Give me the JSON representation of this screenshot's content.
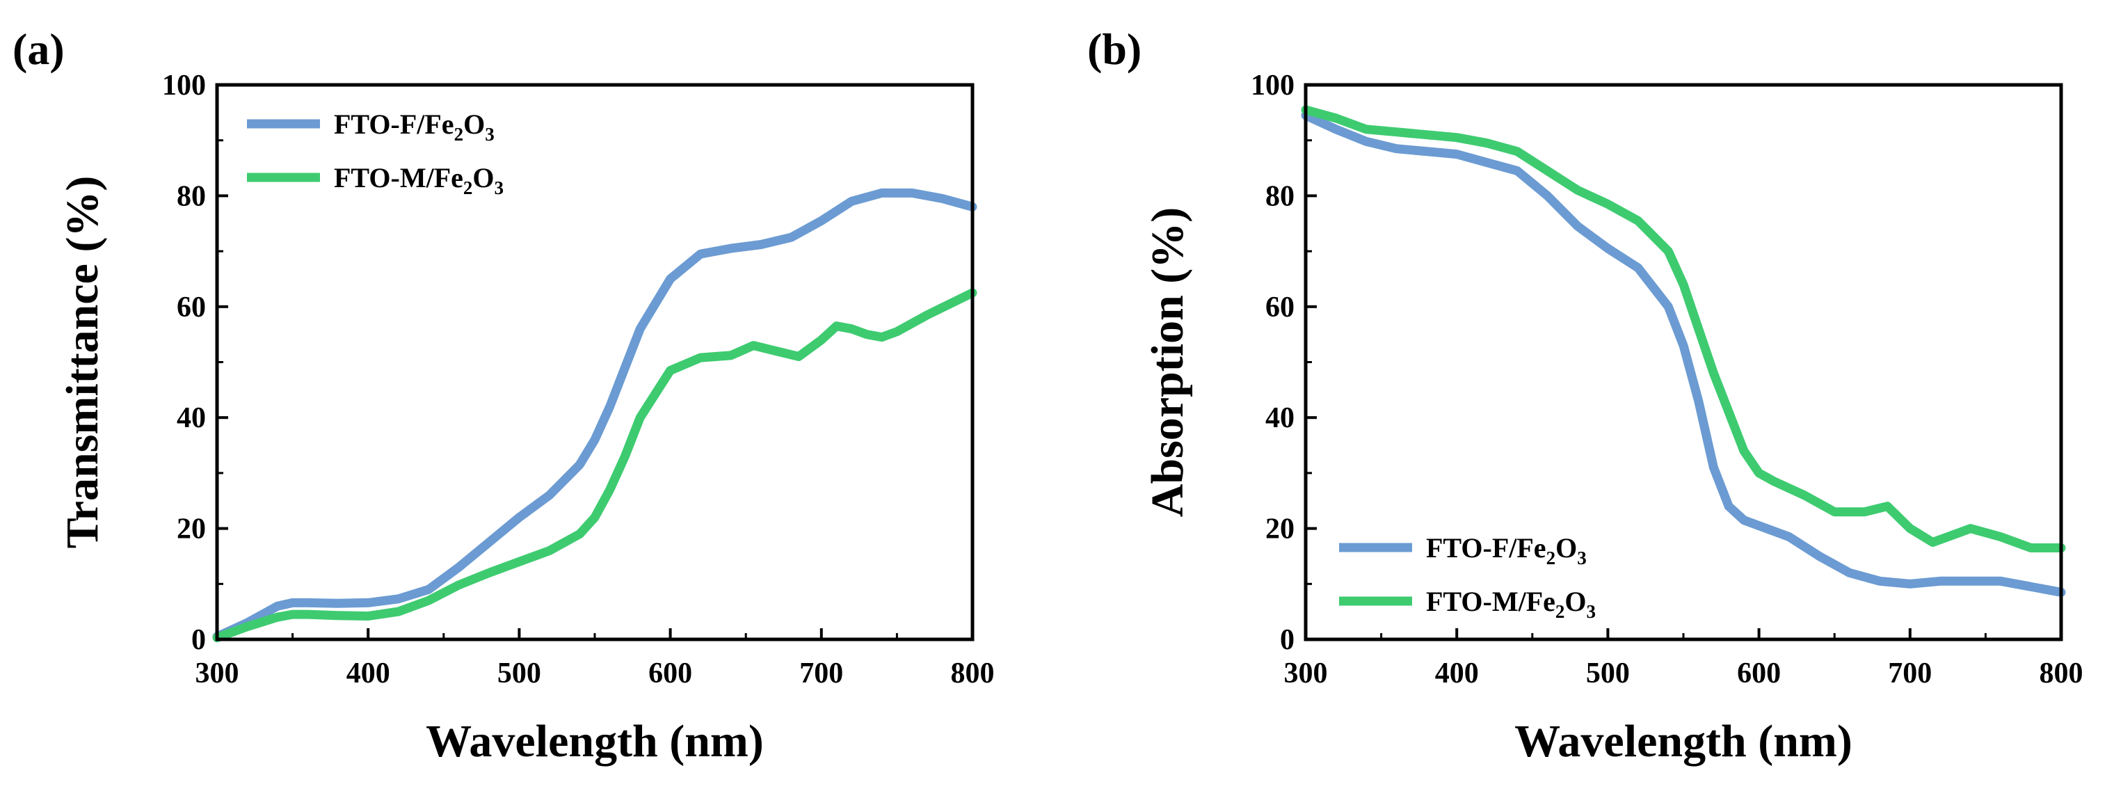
{
  "figure": {
    "background": "#ffffff"
  },
  "colors": {
    "fto_f": "#6b9bd2",
    "fto_m": "#3ecb70"
  },
  "chart_data": [
    {
      "panel": "(a)",
      "type": "line",
      "xlabel": "Wavelength (nm)",
      "ylabel": "Transmittance (%)",
      "xlim": [
        300,
        800
      ],
      "ylim": [
        0,
        100
      ],
      "xticks": [
        "300",
        "400",
        "500",
        "600",
        "700",
        "800"
      ],
      "yticks": [
        "0",
        "20",
        "40",
        "60",
        "80",
        "100"
      ],
      "grid": false,
      "legend_position": "top-left",
      "series": [
        {
          "name": "FTO-F/Fe2O3",
          "label_parts": [
            "FTO-F/Fe",
            "2",
            "O",
            "3"
          ],
          "color": "#6b9bd2",
          "x": [
            300,
            320,
            340,
            350,
            360,
            380,
            400,
            420,
            440,
            460,
            480,
            500,
            520,
            540,
            550,
            560,
            570,
            580,
            600,
            620,
            640,
            660,
            680,
            700,
            720,
            740,
            760,
            780,
            800
          ],
          "y": [
            0.5,
            3.0,
            6.0,
            6.6,
            6.6,
            6.5,
            6.6,
            7.3,
            9.0,
            13.0,
            17.5,
            22.0,
            26.0,
            31.5,
            36.0,
            42.0,
            49.0,
            56.0,
            65.0,
            69.5,
            70.5,
            71.2,
            72.5,
            75.5,
            79.0,
            80.5,
            80.5,
            79.5,
            78.0
          ]
        },
        {
          "name": "FTO-M/Fe2O3",
          "label_parts": [
            "FTO-M/Fe",
            "2",
            "O",
            "3"
          ],
          "color": "#3ecb70",
          "x": [
            300,
            320,
            340,
            350,
            360,
            380,
            400,
            420,
            440,
            460,
            480,
            500,
            520,
            540,
            550,
            560,
            570,
            580,
            600,
            620,
            640,
            655,
            670,
            685,
            700,
            710,
            720,
            730,
            740,
            750,
            770,
            800
          ],
          "y": [
            0.3,
            2.3,
            4.0,
            4.5,
            4.5,
            4.3,
            4.2,
            5.0,
            7.0,
            9.8,
            12.0,
            14.0,
            16.0,
            19.0,
            22.0,
            27.0,
            33.0,
            40.0,
            48.5,
            50.8,
            51.2,
            53.0,
            52.0,
            51.0,
            54.0,
            56.5,
            56.0,
            55.0,
            54.5,
            55.5,
            58.5,
            62.5
          ]
        }
      ]
    },
    {
      "panel": "(b)",
      "type": "line",
      "xlabel": "Wavelength (nm)",
      "ylabel": "Absorption (%)",
      "xlim": [
        300,
        800
      ],
      "ylim": [
        0,
        100
      ],
      "xticks": [
        "300",
        "400",
        "500",
        "600",
        "700",
        "800"
      ],
      "yticks": [
        "0",
        "20",
        "40",
        "60",
        "80",
        "100"
      ],
      "grid": false,
      "legend_position": "bottom-left",
      "series": [
        {
          "name": "FTO-F/Fe2O3",
          "label_parts": [
            "FTO-F/Fe",
            "2",
            "O",
            "3"
          ],
          "color": "#6b9bd2",
          "x": [
            300,
            320,
            340,
            360,
            380,
            400,
            420,
            440,
            460,
            480,
            500,
            520,
            540,
            550,
            560,
            570,
            580,
            590,
            600,
            620,
            640,
            660,
            680,
            700,
            720,
            740,
            760,
            780,
            800
          ],
          "y": [
            94.5,
            92.0,
            89.8,
            88.5,
            88.0,
            87.5,
            86.0,
            84.5,
            80.0,
            74.5,
            70.5,
            67.0,
            60.0,
            53.0,
            43.0,
            31.0,
            24.0,
            21.5,
            20.5,
            18.5,
            15.0,
            12.0,
            10.5,
            10.0,
            10.5,
            10.5,
            10.5,
            9.5,
            8.5
          ]
        },
        {
          "name": "FTO-M/Fe2O3",
          "label_parts": [
            "FTO-M/Fe",
            "2",
            "O",
            "3"
          ],
          "color": "#3ecb70",
          "x": [
            300,
            320,
            340,
            360,
            380,
            400,
            420,
            440,
            460,
            480,
            500,
            520,
            540,
            550,
            560,
            570,
            580,
            590,
            600,
            610,
            630,
            650,
            670,
            685,
            700,
            715,
            730,
            740,
            760,
            780,
            800
          ],
          "y": [
            95.5,
            94.0,
            92.0,
            91.5,
            91.0,
            90.5,
            89.5,
            88.0,
            84.5,
            81.0,
            78.5,
            75.5,
            70.0,
            64.0,
            56.0,
            48.0,
            41.0,
            34.0,
            30.0,
            28.5,
            26.0,
            23.0,
            23.0,
            24.0,
            20.0,
            17.5,
            19.0,
            20.0,
            18.5,
            16.5,
            16.5
          ]
        }
      ]
    }
  ]
}
